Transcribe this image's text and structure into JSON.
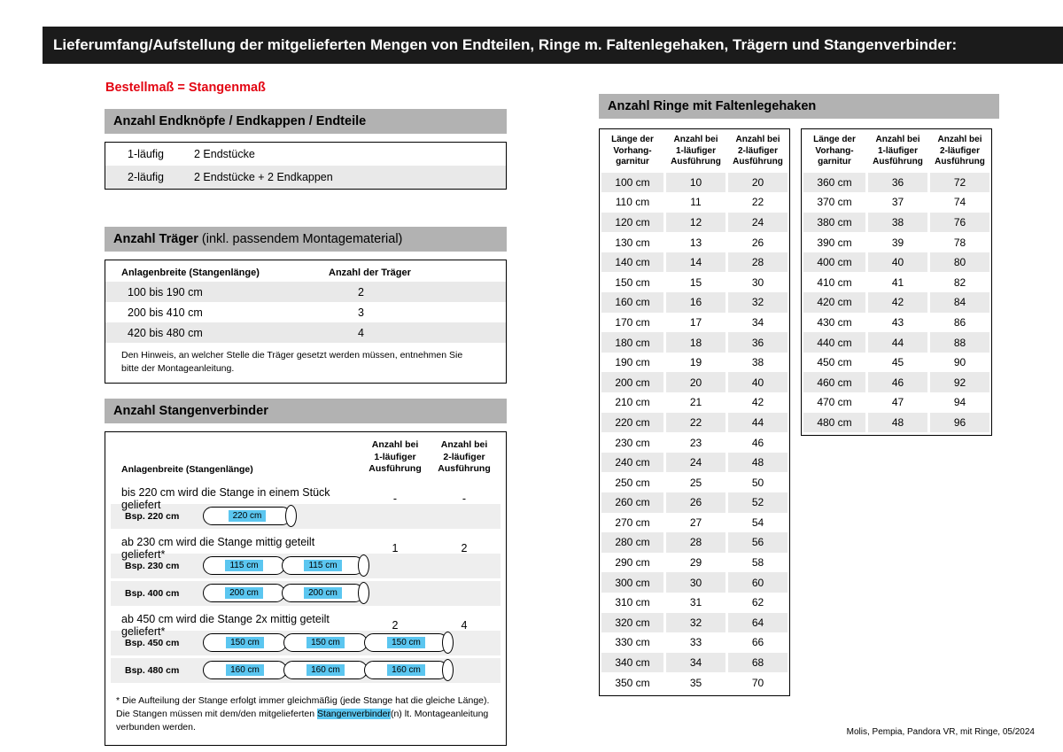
{
  "colors": {
    "header_black": "#1b1b1b",
    "bar_gray": "#b2b2b2",
    "stripe_gray": "#e9e9e9",
    "example_gray": "#eeeeee",
    "accent_red": "#e30613",
    "highlight_blue": "#5bc6f0"
  },
  "title_bar": {
    "text": "Lieferumfang/Aufstellung der mitgelieferten Mengen von Endteilen, Ringe m. Faltenlegehaken, Trägern und Stangenverbinder:"
  },
  "subtitle": {
    "text": "Bestellmaß = Stangenmaß"
  },
  "end_pieces": {
    "title": "Anzahl Endknöpfe / Endkappen / Endteile",
    "rows": [
      {
        "label": "1-läufig",
        "value": "2 Endstücke"
      },
      {
        "label": "2-läufig",
        "value": "2 Endstücke + 2 Endkappen"
      }
    ]
  },
  "traeger": {
    "title": "Anzahl Träger",
    "title_suffix": " (inkl. passendem Montagematerial)",
    "col1": "Anlagenbreite (Stangenlänge)",
    "col2": "Anzahl der Träger",
    "rows": [
      [
        "100 bis 190 cm",
        "2"
      ],
      [
        "200 bis 410 cm",
        "3"
      ],
      [
        "420 bis 480 cm",
        "4"
      ]
    ],
    "note": "Den Hinweis, an welcher Stelle die Träger gesetzt werden müssen, entnehmen Sie bitte der Montageanleitung."
  },
  "verbinder": {
    "title": "Anzahl Stangenverbinder",
    "col_left": "Anlagenbreite (Stangenlänge)",
    "col1": "Anzahl bei\n1-läufiger\nAusführung",
    "col2": "Anzahl bei\n2-läufiger\nAusführung",
    "groups": [
      {
        "desc": "bis 220 cm wird die Stange in einem Stück geliefert",
        "val1": "-",
        "val2": "-",
        "examples": [
          {
            "label": "Bsp. 220 cm",
            "segments": [
              "220 cm"
            ]
          }
        ]
      },
      {
        "desc": "ab 230 cm wird die Stange mittig geteilt geliefert*",
        "val1": "1",
        "val2": "2",
        "examples": [
          {
            "label": "Bsp. 230 cm",
            "segments": [
              "115 cm",
              "115 cm"
            ]
          },
          {
            "label": "Bsp. 400 cm",
            "segments": [
              "200 cm",
              "200 cm"
            ]
          }
        ]
      },
      {
        "desc": "ab 450 cm wird die Stange 2x mittig geteilt geliefert*",
        "val1": "2",
        "val2": "4",
        "examples": [
          {
            "label": "Bsp. 450 cm",
            "segments": [
              "150 cm",
              "150 cm",
              "150 cm"
            ]
          },
          {
            "label": "Bsp. 480 cm",
            "segments": [
              "160 cm",
              "160 cm",
              "160 cm"
            ]
          }
        ]
      }
    ],
    "footnote_pre": "* Die Aufteilung der Stange erfolgt immer gleichmäßig (jede Stange hat die gleiche Länge). Die Stangen müssen mit dem/den mitgelieferten ",
    "footnote_highlight": "Stangenverbinder",
    "footnote_post": "(n) lt. Montageanleitung verbunden werden."
  },
  "rings": {
    "title": "Anzahl Ringe mit Faltenlegehaken",
    "col1": "Länge der\nVorhang-\ngarnitur",
    "col2": "Anzahl bei\n1-läufiger\nAusführung",
    "col3": "Anzahl bei\n2-läufiger\nAusführung",
    "table1": [
      [
        "100 cm",
        "10",
        "20"
      ],
      [
        "110 cm",
        "11",
        "22"
      ],
      [
        "120 cm",
        "12",
        "24"
      ],
      [
        "130 cm",
        "13",
        "26"
      ],
      [
        "140 cm",
        "14",
        "28"
      ],
      [
        "150 cm",
        "15",
        "30"
      ],
      [
        "160 cm",
        "16",
        "32"
      ],
      [
        "170 cm",
        "17",
        "34"
      ],
      [
        "180 cm",
        "18",
        "36"
      ],
      [
        "190 cm",
        "19",
        "38"
      ],
      [
        "200 cm",
        "20",
        "40"
      ],
      [
        "210 cm",
        "21",
        "42"
      ],
      [
        "220 cm",
        "22",
        "44"
      ],
      [
        "230 cm",
        "23",
        "46"
      ],
      [
        "240 cm",
        "24",
        "48"
      ],
      [
        "250 cm",
        "25",
        "50"
      ],
      [
        "260 cm",
        "26",
        "52"
      ],
      [
        "270 cm",
        "27",
        "54"
      ],
      [
        "280 cm",
        "28",
        "56"
      ],
      [
        "290 cm",
        "29",
        "58"
      ],
      [
        "300 cm",
        "30",
        "60"
      ],
      [
        "310 cm",
        "31",
        "62"
      ],
      [
        "320 cm",
        "32",
        "64"
      ],
      [
        "330 cm",
        "33",
        "66"
      ],
      [
        "340 cm",
        "34",
        "68"
      ],
      [
        "350 cm",
        "35",
        "70"
      ]
    ],
    "table2": [
      [
        "360 cm",
        "36",
        "72"
      ],
      [
        "370 cm",
        "37",
        "74"
      ],
      [
        "380 cm",
        "38",
        "76"
      ],
      [
        "390 cm",
        "39",
        "78"
      ],
      [
        "400 cm",
        "40",
        "80"
      ],
      [
        "410 cm",
        "41",
        "82"
      ],
      [
        "420 cm",
        "42",
        "84"
      ],
      [
        "430 cm",
        "43",
        "86"
      ],
      [
        "440 cm",
        "44",
        "88"
      ],
      [
        "450 cm",
        "45",
        "90"
      ],
      [
        "460 cm",
        "46",
        "92"
      ],
      [
        "470 cm",
        "47",
        "94"
      ],
      [
        "480 cm",
        "48",
        "96"
      ]
    ]
  },
  "footer": {
    "text": "Molis, Pempia, Pandora VR, mit Ringe, 05/2024"
  }
}
